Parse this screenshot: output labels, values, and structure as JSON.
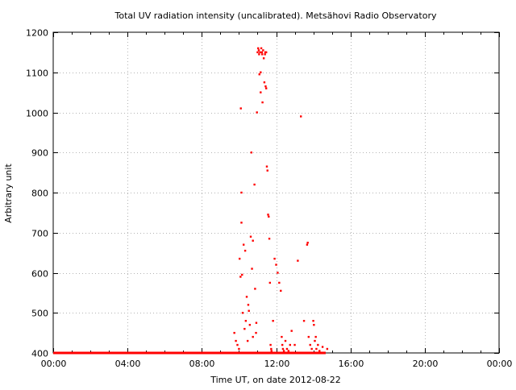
{
  "chart_data": {
    "type": "scatter",
    "title": "Total UV radiation intensity (uncalibrated). Metsähovi Radio Observatory",
    "xlabel": "Time UT, on date 2012-08-22",
    "ylabel": "Arbitrary unit",
    "xlim": [
      "00:00",
      "24:00"
    ],
    "ylim": [
      400,
      1200
    ],
    "x_ticks": [
      "00:00",
      "04:00",
      "08:00",
      "12:00",
      "16:00",
      "20:00",
      "00:00"
    ],
    "y_ticks": [
      400,
      500,
      600,
      700,
      800,
      900,
      1000,
      1100,
      1200
    ],
    "grid": true,
    "baseline": {
      "x_start": "00:00",
      "x_end": "14:40",
      "y": 400
    },
    "marker_color": "#ff0000",
    "series": [
      {
        "x": [
          "09:45",
          "09:50",
          "09:55",
          "10:00",
          "10:02",
          "10:05",
          "10:06",
          "10:08",
          "10:08",
          "10:10",
          "10:12",
          "10:15",
          "10:18",
          "10:20",
          "10:22",
          "10:25",
          "10:28",
          "10:30",
          "10:32",
          "10:35",
          "10:38",
          "10:40",
          "10:42",
          "10:45",
          "10:45",
          "10:50",
          "10:52",
          "10:55",
          "10:56",
          "10:58",
          "11:00",
          "11:02",
          "11:04",
          "11:05",
          "11:06",
          "11:08",
          "11:10",
          "11:10",
          "11:12",
          "11:14",
          "11:15",
          "11:16",
          "11:18",
          "11:20",
          "11:22",
          "11:24",
          "11:25",
          "11:26",
          "11:28",
          "11:28",
          "11:30",
          "11:32",
          "11:34",
          "11:36",
          "11:38",
          "11:40",
          "11:42",
          "11:44",
          "11:45",
          "11:50",
          "11:55",
          "12:00",
          "12:05",
          "12:10",
          "12:15",
          "12:18",
          "12:20",
          "12:22",
          "12:25",
          "12:30",
          "12:35",
          "12:40",
          "12:45",
          "12:50",
          "13:00",
          "13:10",
          "13:20",
          "13:30",
          "13:40",
          "13:42",
          "13:45",
          "13:50",
          "13:55",
          "14:00",
          "14:02",
          "14:05",
          "14:08",
          "14:10",
          "14:15",
          "14:20",
          "14:30",
          "14:45"
        ],
        "y": [
          450,
          430,
          420,
          410,
          635,
          590,
          1010,
          725,
          800,
          595,
          500,
          670,
          460,
          655,
          480,
          540,
          430,
          520,
          505,
          470,
          690,
          900,
          610,
          440,
          680,
          820,
          560,
          450,
          475,
          1000,
          1150,
          1160,
          1155,
          1145,
          1095,
          1150,
          1050,
          1100,
          1160,
          1150,
          1145,
          1025,
          1155,
          1135,
          1075,
          1145,
          1150,
          1065,
          1060,
          1150,
          865,
          855,
          745,
          740,
          685,
          575,
          420,
          410,
          405,
          480,
          635,
          620,
          600,
          575,
          555,
          440,
          420,
          410,
          405,
          430,
          410,
          405,
          420,
          455,
          420,
          630,
          990,
          480,
          670,
          675,
          440,
          420,
          410,
          480,
          470,
          430,
          440,
          410,
          420,
          405,
          415,
          410
        ]
      }
    ]
  }
}
